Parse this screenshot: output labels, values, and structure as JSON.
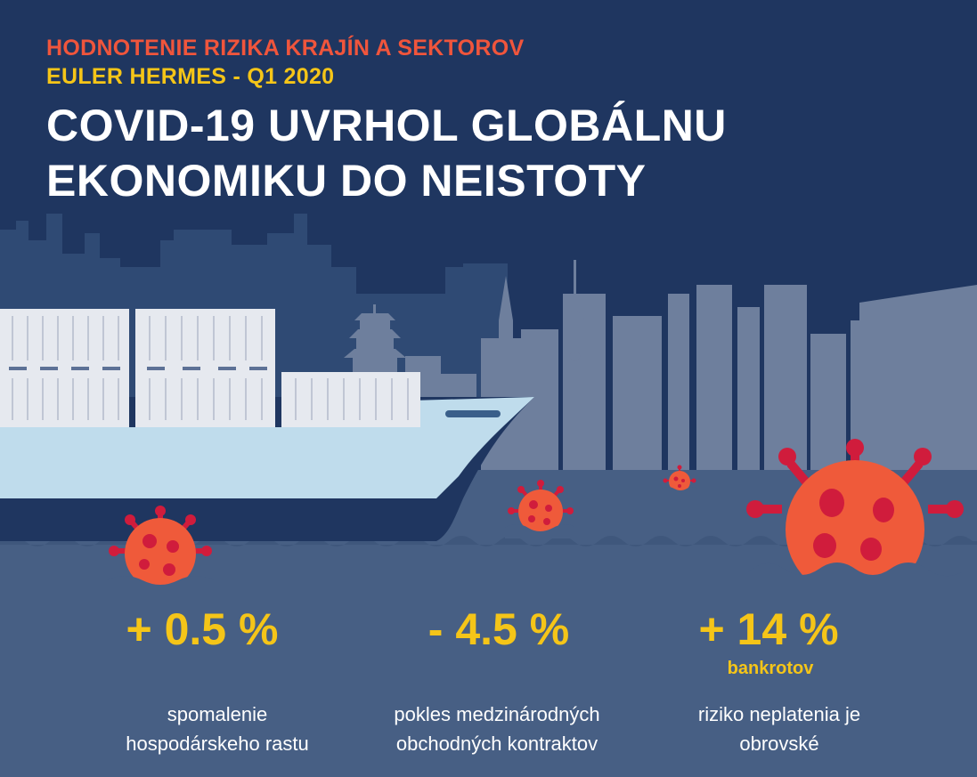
{
  "header": {
    "subtitle_1": "HODNOTENIE RIZIKA KRAJÍN A SEKTOROV",
    "subtitle_2": "EULER HERMES - Q1 2020",
    "title_line_1": "COVID-19 UVRHOL GLOBÁLNU",
    "title_line_2": "EKONOMIKU DO NEISTOTY"
  },
  "stats": [
    {
      "value": "+ 0.5 %",
      "note": "",
      "desc_line_1": "spomalenie",
      "desc_line_2": "hospodárskeho rastu"
    },
    {
      "value": "- 4.5 %",
      "note": "",
      "desc_line_1": "pokles medzinárodných",
      "desc_line_2": "obchodných kontraktov"
    },
    {
      "value": "+ 14 %",
      "note": "bankrotov",
      "desc_line_1": "riziko neplatenia je",
      "desc_line_2": "obrovské"
    }
  ],
  "colors": {
    "background": "#1f3660",
    "skyline_back": "#2f4a74",
    "skyline_front": "#6e7f9d",
    "water": "#475f84",
    "ship_hull": "#bfdcec",
    "container": "#e6e9ef",
    "subtitle_orange": "#f0553c",
    "subtitle_yellow": "#f5c518",
    "stat_yellow": "#f5c518",
    "virus_body": "#ef5a3a",
    "virus_spots": "#d01c3c",
    "text_white": "#ffffff"
  },
  "illustration": {
    "icons": [
      "city-skyline",
      "pagoda",
      "tv-tower",
      "cargo-ship",
      "shipping-container",
      "virus-icon",
      "water-waves"
    ]
  }
}
